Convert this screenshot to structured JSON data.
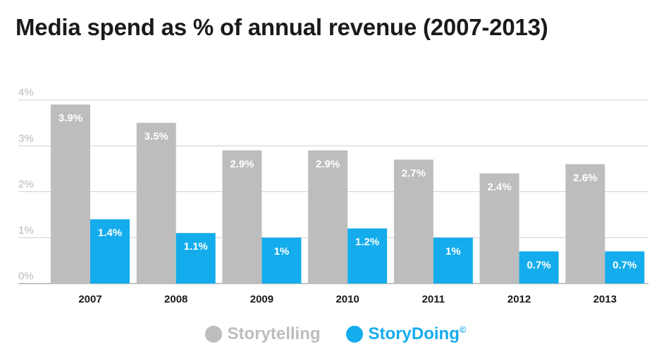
{
  "chart_data": {
    "type": "bar",
    "title": "Media spend as % of annual revenue (2007-2013)",
    "categories": [
      "2007",
      "2008",
      "2009",
      "2010",
      "2011",
      "2012",
      "2013"
    ],
    "series": [
      {
        "name": "Storytelling",
        "color": "#bdbdbd",
        "values": [
          3.9,
          3.5,
          2.9,
          2.9,
          2.7,
          2.4,
          2.6
        ],
        "labels": [
          "3.9%",
          "3.5%",
          "2.9%",
          "2.9%",
          "2.7%",
          "2.4%",
          "2.6%"
        ]
      },
      {
        "name": "StoryDoing",
        "color": "#14acec",
        "values": [
          1.4,
          1.1,
          1.0,
          1.2,
          1.0,
          0.7,
          0.7
        ],
        "labels": [
          "1.4%",
          "1.1%",
          "1%",
          "1.2%",
          "1%",
          "0.7%",
          "0.7%"
        ]
      }
    ],
    "ylim": [
      0,
      4
    ],
    "yticks": [
      0,
      1,
      2,
      3,
      4
    ],
    "ytick_labels": [
      "0%",
      "1%",
      "2%",
      "3%",
      "4%"
    ],
    "xlabel": "",
    "ylabel": "",
    "grid": true,
    "legend_position": "bottom-center"
  },
  "legend": {
    "items": [
      {
        "label": "Storytelling",
        "suffix": "",
        "color": "#bdbdbd",
        "text_color": "#bdbdbd"
      },
      {
        "label": "StoryDoing",
        "suffix": "©",
        "color": "#14acec",
        "text_color": "#14acec"
      }
    ]
  }
}
